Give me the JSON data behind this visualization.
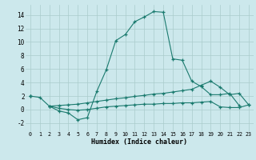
{
  "xlabel": "Humidex (Indice chaleur)",
  "bg_color": "#cce8ec",
  "grid_color": "#aacccc",
  "line_color": "#1a7a6e",
  "xlim": [
    -0.5,
    23.5
  ],
  "ylim": [
    -3.2,
    15.5
  ],
  "xticks": [
    0,
    1,
    2,
    3,
    4,
    5,
    6,
    7,
    8,
    9,
    10,
    11,
    12,
    13,
    14,
    15,
    16,
    17,
    18,
    19,
    20,
    21,
    22,
    23
  ],
  "yticks": [
    -2,
    0,
    2,
    4,
    6,
    8,
    10,
    12,
    14
  ],
  "series1_y": [
    2.0,
    1.8,
    0.5,
    -0.2,
    -0.5,
    -1.5,
    -1.2,
    2.7,
    5.9,
    10.2,
    11.1,
    13.0,
    13.7,
    14.5,
    14.4,
    7.5,
    7.3,
    4.2,
    3.4,
    2.2,
    2.2,
    2.4,
    0.6,
    null
  ],
  "series2_y": [
    2.0,
    null,
    0.5,
    0.6,
    0.7,
    0.8,
    1.0,
    1.2,
    1.4,
    1.6,
    1.75,
    1.95,
    2.1,
    2.3,
    2.4,
    2.6,
    2.8,
    3.0,
    3.6,
    4.2,
    3.3,
    2.2,
    2.4,
    0.7
  ],
  "series3_y": [
    2.0,
    null,
    0.5,
    0.2,
    0.0,
    -0.1,
    0.0,
    0.2,
    0.4,
    0.5,
    0.6,
    0.7,
    0.8,
    0.8,
    0.9,
    0.9,
    1.0,
    1.0,
    1.1,
    1.2,
    0.4,
    0.3,
    0.3,
    0.7
  ]
}
